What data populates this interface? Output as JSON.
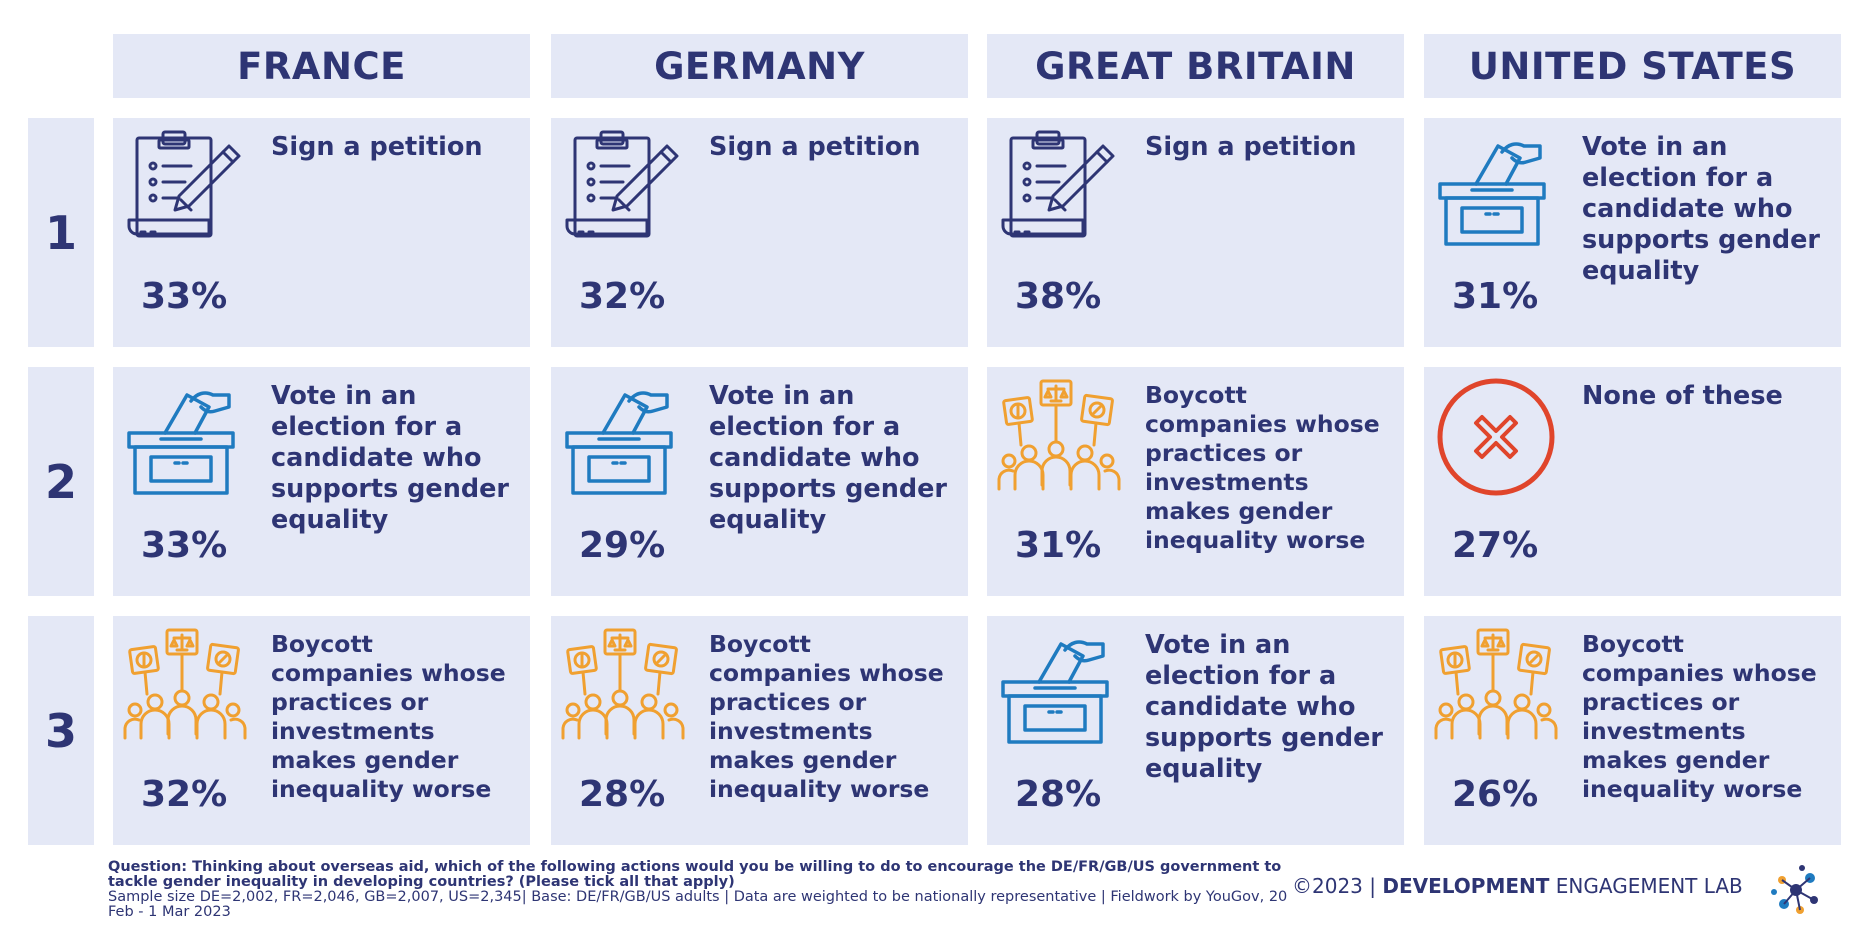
{
  "countries": [
    "FRANCE",
    "GERMANY",
    "GREAT BRITAIN",
    "UNITED STATES"
  ],
  "ranks": [
    "1",
    "2",
    "3"
  ],
  "rows": [
    [
      {
        "icon": "petition-icon",
        "label": "Sign a petition",
        "pct": "33%"
      },
      {
        "icon": "petition-icon",
        "label": "Sign a petition",
        "pct": "32%"
      },
      {
        "icon": "petition-icon",
        "label": "Sign a petition",
        "pct": "38%"
      },
      {
        "icon": "ballot-box-icon",
        "label": "Vote in an election for a candidate who supports gender equality",
        "pct": "31%"
      }
    ],
    [
      {
        "icon": "ballot-box-icon",
        "label": "Vote in an election for a candidate who supports gender equality",
        "pct": "33%"
      },
      {
        "icon": "ballot-box-icon",
        "label": "Vote in an election for a candidate who supports gender equality",
        "pct": "29%"
      },
      {
        "icon": "boycott-protest-icon",
        "label": "Boycott companies whose practices or investments makes gender inequality worse",
        "pct": "31%"
      },
      {
        "icon": "none-cross-icon",
        "label": "None of these",
        "pct": "27%"
      }
    ],
    [
      {
        "icon": "boycott-protest-icon",
        "label": "Boycott companies whose practices or investments makes gender inequality worse",
        "pct": "32%"
      },
      {
        "icon": "boycott-protest-icon",
        "label": "Boycott companies whose practices or investments makes gender inequality worse",
        "pct": "28%"
      },
      {
        "icon": "ballot-box-icon",
        "label": "Vote in an election for a candidate who supports gender equality",
        "pct": "28%"
      },
      {
        "icon": "boycott-protest-icon",
        "label": "Boycott companies whose practices or investments makes gender inequality worse",
        "pct": "26%"
      }
    ]
  ],
  "footer": {
    "question": "Question: Thinking about overseas aid, which of the following actions would you be willing to do to encourage the DE/FR/GB/US government to tackle gender inequality in developing countries? (Please tick all that apply)",
    "sample": "Sample size DE=2,002, FR=2,046, GB=2,007, US=2,345| Base: DE/FR/GB/US adults | Data are weighted to be nationally representative | Fieldwork by YouGov, 20 Feb - 1 Mar 2023"
  },
  "brand": {
    "copyright": "©2023 | ",
    "name_bold": "DEVELOPMENT",
    "name_rest": " ENGAGEMENT LAB"
  },
  "colors": {
    "navy": "#2e3574",
    "cell_bg": "#e4e8f6",
    "blue_icon": "#1f7bc0",
    "orange_icon": "#f0a030",
    "red_icon": "#e0452b"
  }
}
